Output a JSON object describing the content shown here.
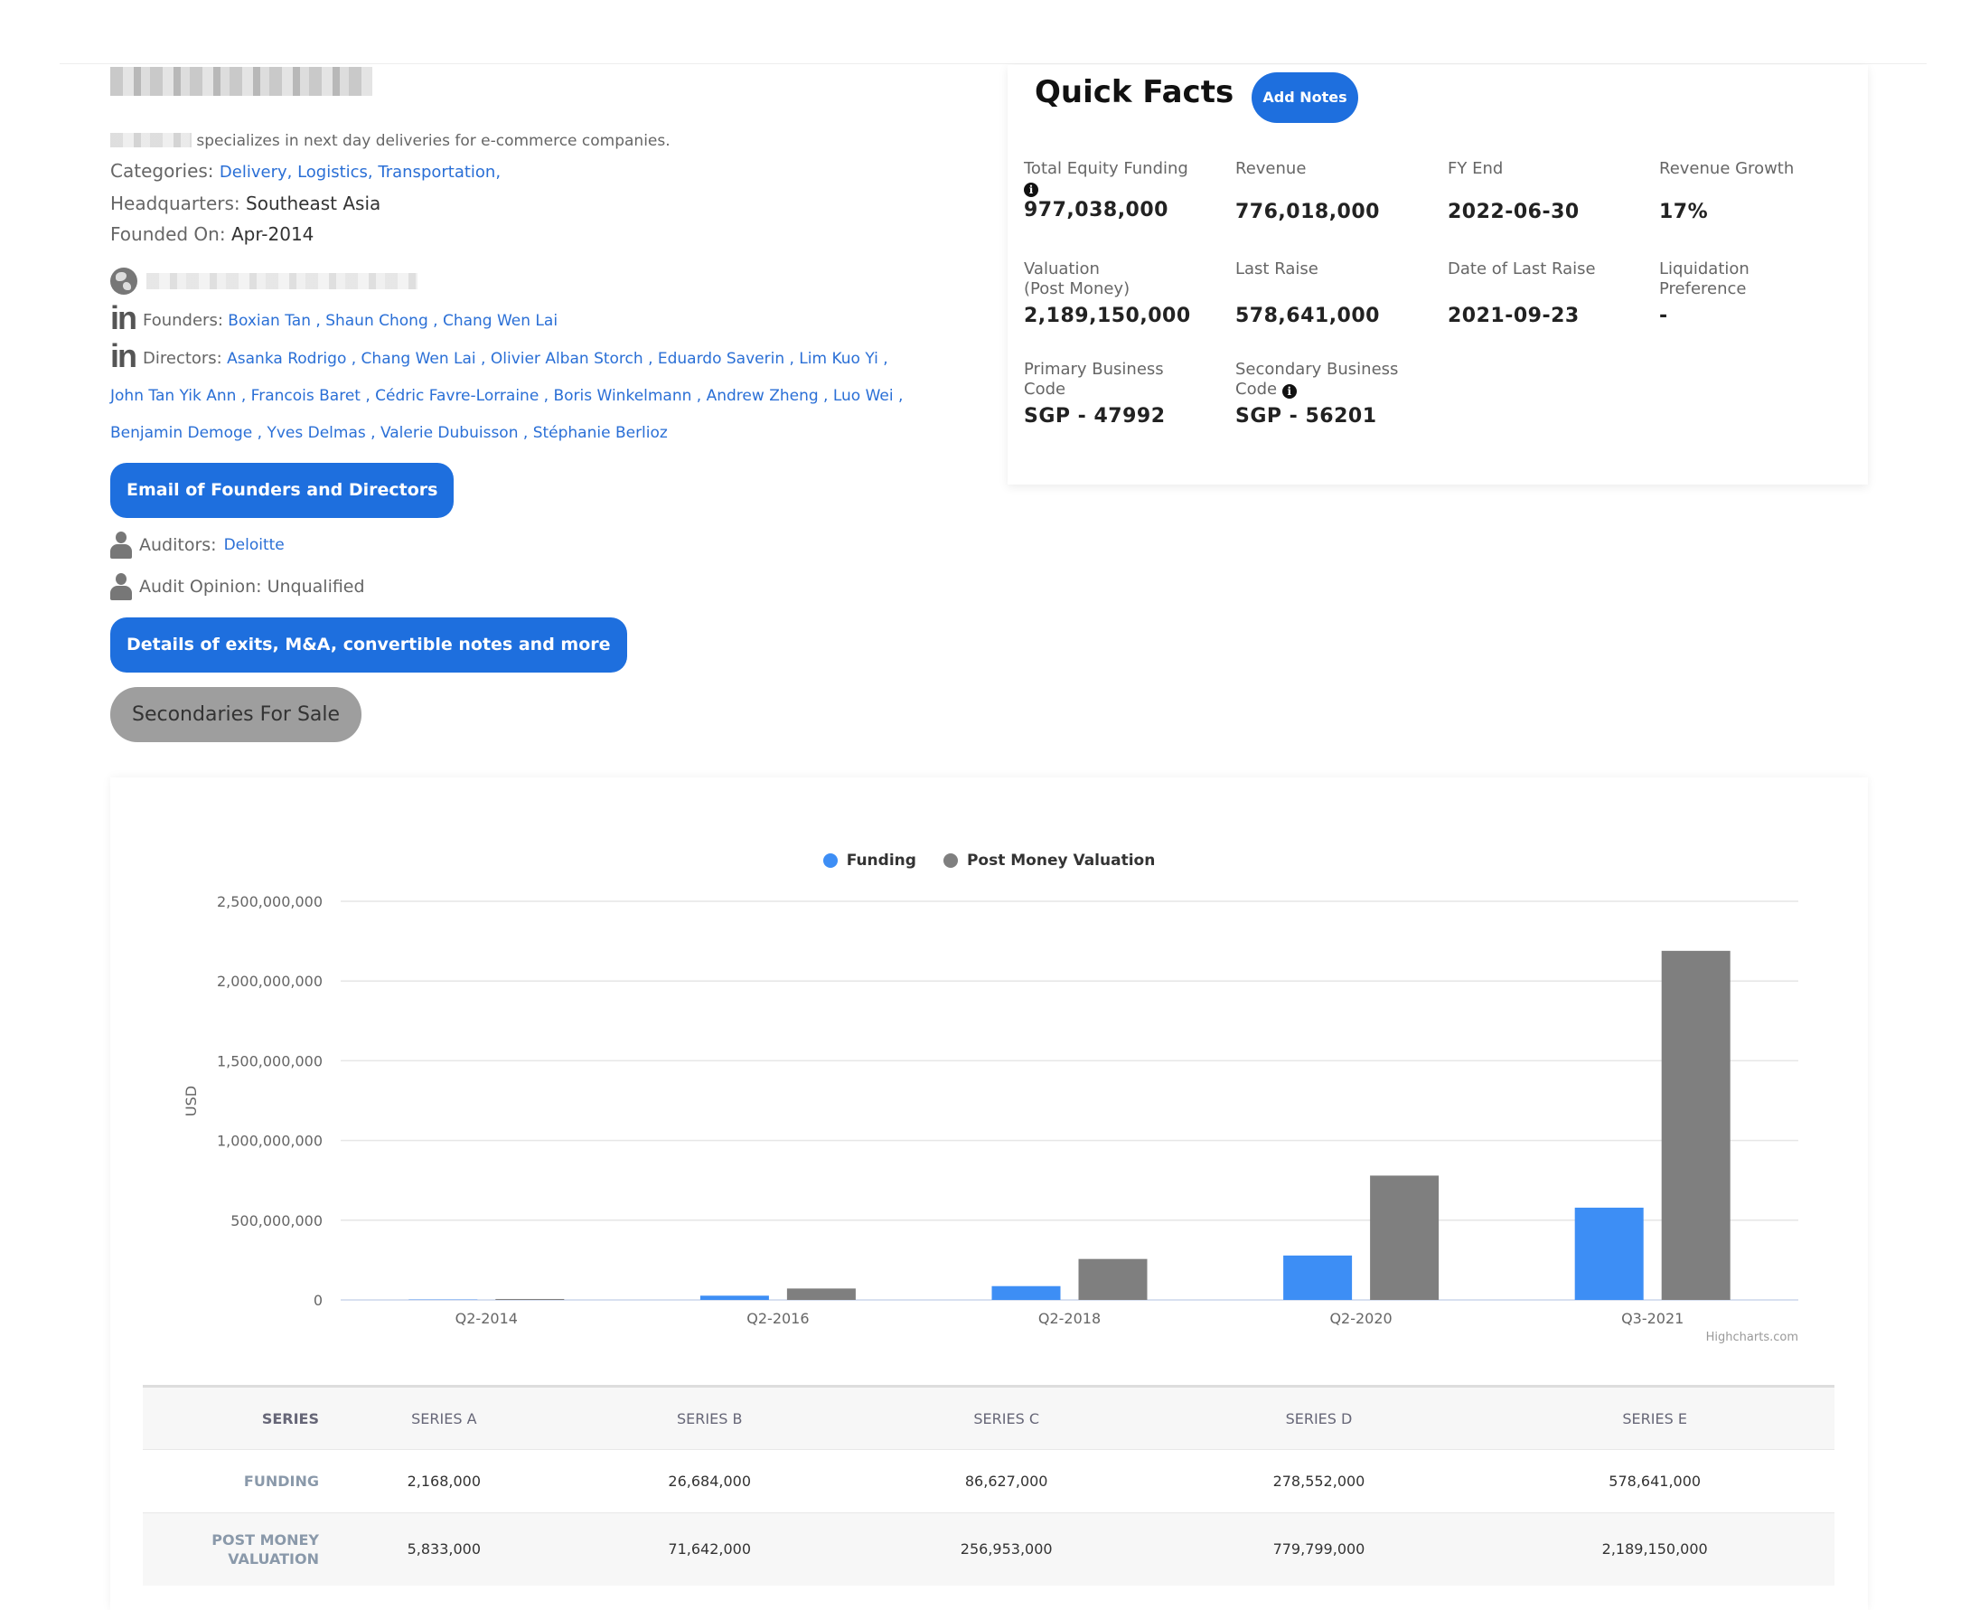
{
  "company": {
    "description": "specializes in next day deliveries for e-commerce companies.",
    "categories_label": "Categories:",
    "categories": "Delivery, Logistics, Transportation,",
    "hq_label": "Headquarters:",
    "hq": "Southeast Asia",
    "founded_label": "Founded On:",
    "founded": "Apr-2014",
    "founders_label": "Founders:",
    "founders": "Boxian Tan , Shaun Chong , Chang Wen Lai",
    "directors_label": "Directors:",
    "directors_line1": "Asanka Rodrigo , Chang Wen Lai , Olivier Alban Storch , Eduardo Saverin , Lim Kuo Yi ,",
    "directors_line2": "John Tan Yik Ann , Francois Baret , Cédric Favre-Lorraine , Boris Winkelmann , Andrew Zheng , Luo Wei ,",
    "directors_line3": "Benjamin Demoge , Yves Delmas , Valerie Dubuisson , Stéphanie Berlioz",
    "email_button": "Email of Founders and Directors",
    "auditors_label": "Auditors:",
    "auditors": "Deloitte",
    "audit_opinion": "Audit Opinion: Unqualified",
    "details_button": "Details of exits, M&A, convertible notes and more",
    "secondaries_button": "Secondaries For Sale"
  },
  "quick_facts": {
    "title": "Quick Facts",
    "add_notes": "Add Notes",
    "items": [
      {
        "label": "Total Equity Funding",
        "value": "977,038,000"
      },
      {
        "label": "Revenue",
        "value": "776,018,000"
      },
      {
        "label": "FY End",
        "value": "2022-06-30"
      },
      {
        "label": "Revenue Growth",
        "value": "17%"
      },
      {
        "label": "Valuation\n(Post Money)",
        "value": "2,189,150,000"
      },
      {
        "label": "Last Raise",
        "value": "578,641,000"
      },
      {
        "label": "Date of Last Raise",
        "value": "2021-09-23"
      },
      {
        "label": "Liquidation\nPreference",
        "value": "-"
      },
      {
        "label": "Primary Business\nCode",
        "value": "SGP - 47992"
      },
      {
        "label": "Secondary Business\nCode",
        "value": "SGP - 56201"
      }
    ]
  },
  "colors": {
    "funding": "#3d8ef5",
    "valuation": "#7f7f7f",
    "accent": "#1e6fde"
  },
  "chart_data": {
    "type": "bar",
    "categories": [
      "Q2-2014",
      "Q2-2016",
      "Q2-2018",
      "Q2-2020",
      "Q3-2021"
    ],
    "series": [
      {
        "name": "Funding",
        "values": [
          2168000,
          26684000,
          86627000,
          278552000,
          578641000
        ]
      },
      {
        "name": "Post Money Valuation",
        "values": [
          5833000,
          71642000,
          256953000,
          779799000,
          2189150000
        ]
      }
    ],
    "ylabel": "USD",
    "ylim": [
      0,
      2500000000
    ],
    "yticks": [
      0,
      500000000,
      1000000000,
      1500000000,
      2000000000,
      2500000000
    ],
    "ytick_labels": [
      "0",
      "500,000,000",
      "1,000,000,000",
      "1,500,000,000",
      "2,000,000,000",
      "2,500,000,000"
    ],
    "legend_position": "top-center",
    "grid": true,
    "credits": "Highcharts.com"
  },
  "table": {
    "headers": [
      "SERIES",
      "SERIES A",
      "SERIES B",
      "SERIES C",
      "SERIES D",
      "SERIES E"
    ],
    "funding_label": "FUNDING",
    "funding": [
      "2,168,000",
      "26,684,000",
      "86,627,000",
      "278,552,000",
      "578,641,000"
    ],
    "valuation_label_1": "POST MONEY",
    "valuation_label_2": "VALUATION",
    "valuation": [
      "5,833,000",
      "71,642,000",
      "256,953,000",
      "779,799,000",
      "2,189,150,000"
    ]
  }
}
